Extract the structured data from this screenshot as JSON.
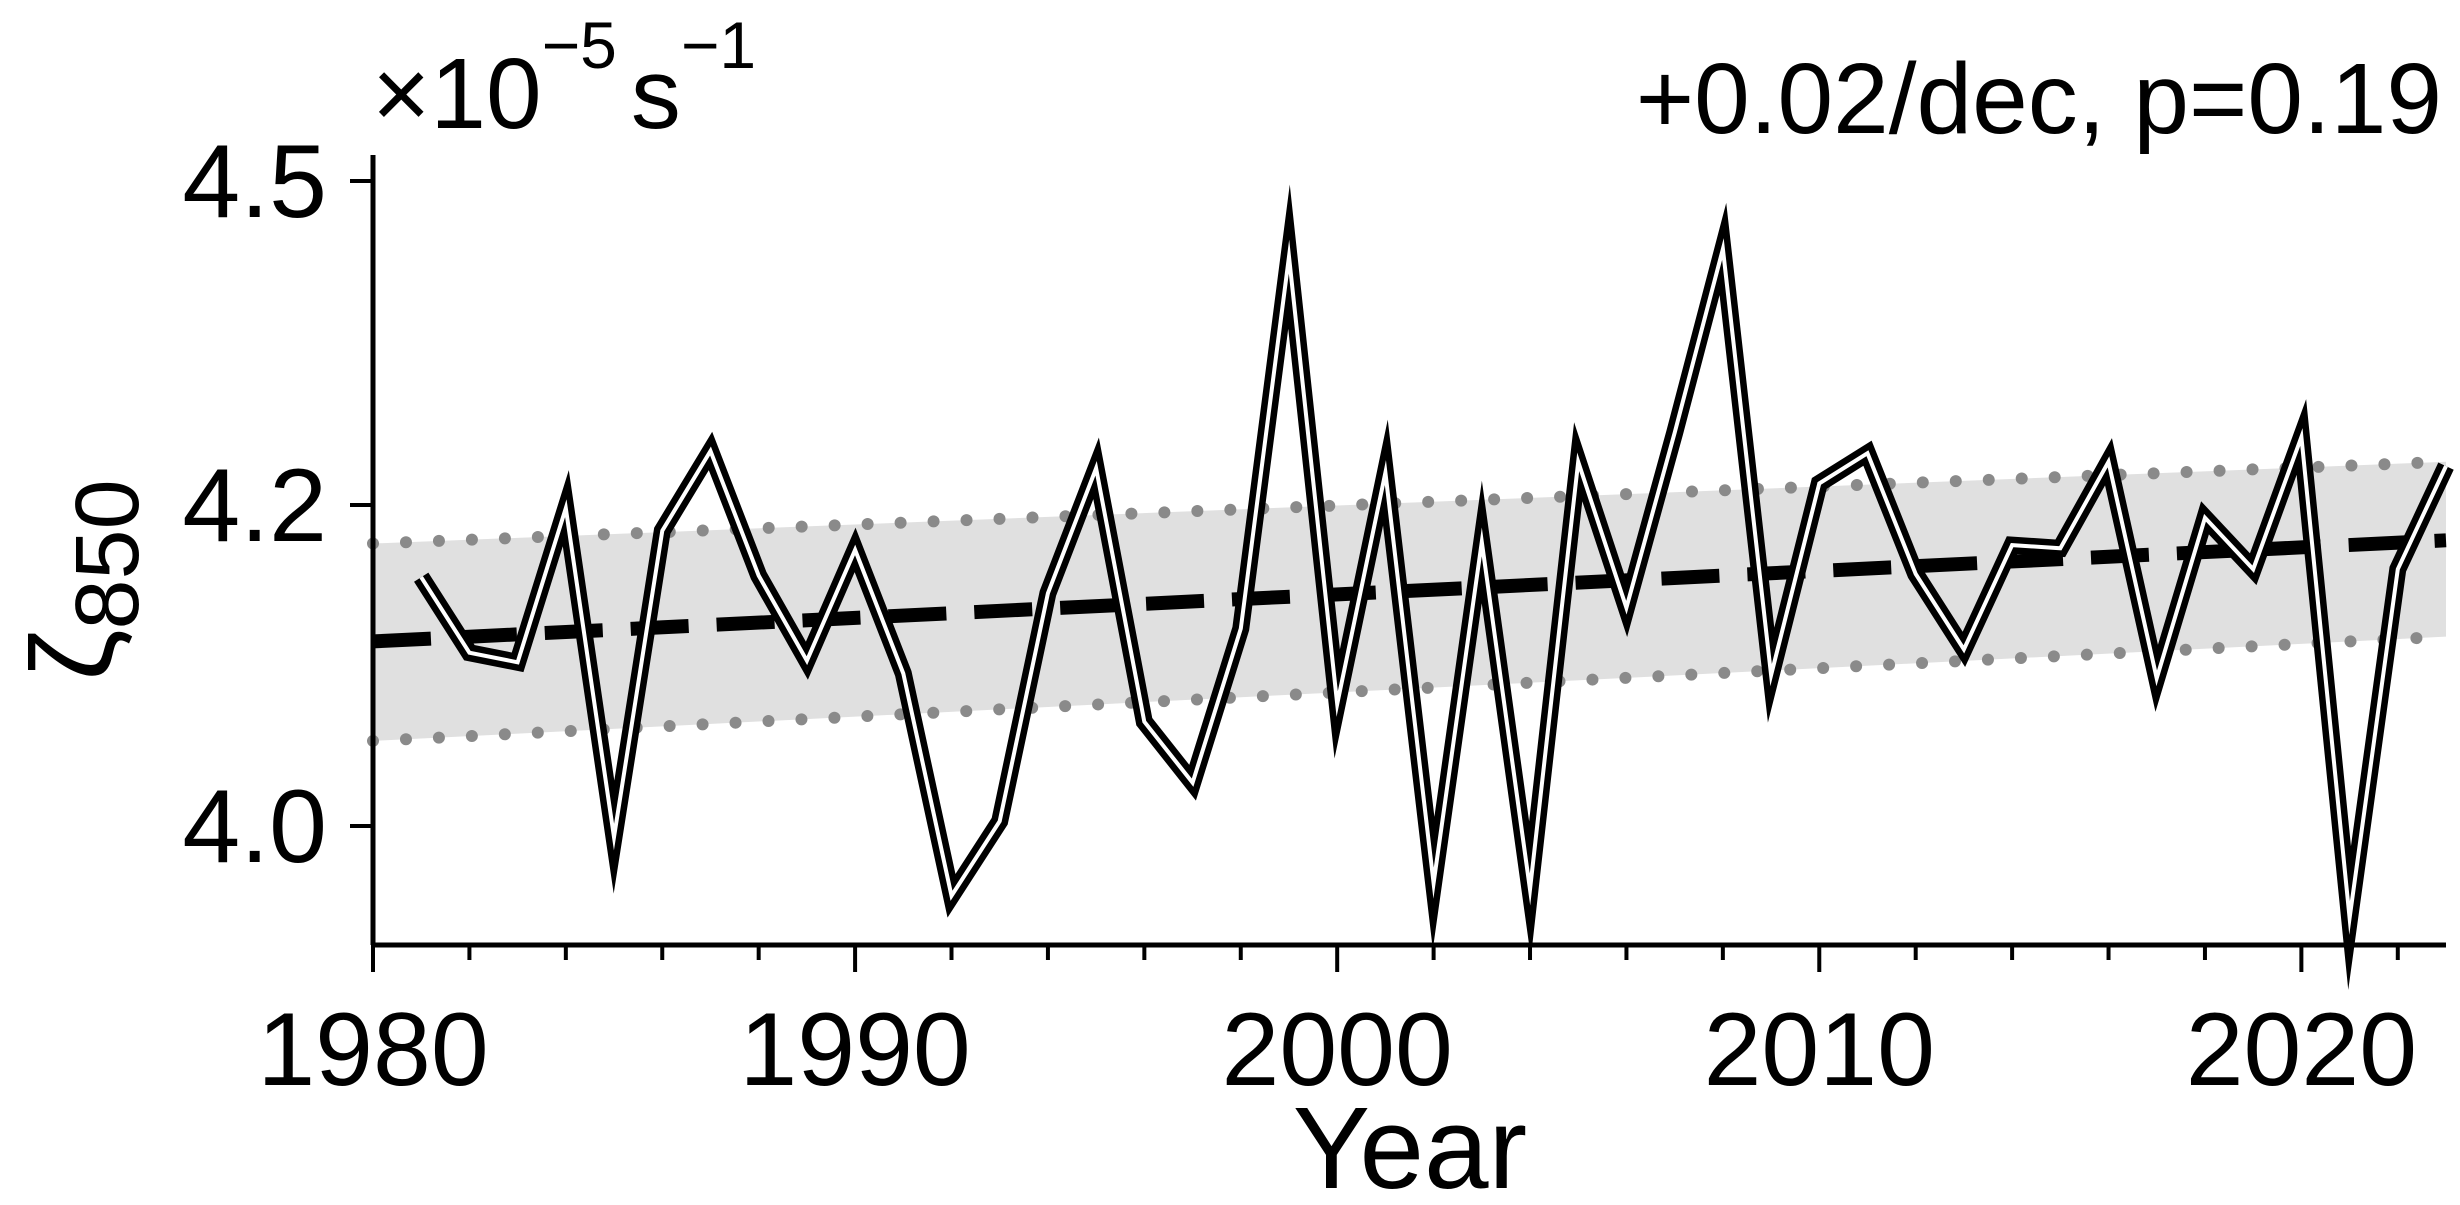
{
  "chart_data": {
    "type": "line",
    "xlabel": "Year",
    "ylabel_symbol": "ζ",
    "ylabel_subscript": "850",
    "units": {
      "prefix": "×10",
      "exponent": "−5",
      "unit": "s",
      "unit_exponent": "−1"
    },
    "annotation": "+0.02/dec, p=0.19",
    "xlim": [
      1980,
      2023
    ],
    "ylim": [
      3.925,
      4.52
    ],
    "y_scale_note": "nonlinear axis mapping as drawn (4.0, 4.2, 4.5 ticks)",
    "x_ticks": [
      {
        "value": 1980,
        "label": "1980"
      },
      {
        "value": 1990,
        "label": "1990"
      },
      {
        "value": 2000,
        "label": "2000"
      },
      {
        "value": 2010,
        "label": "2010"
      },
      {
        "value": 2020,
        "label": "2020"
      }
    ],
    "y_ticks": [
      {
        "value": 4.0,
        "label": "4.0"
      },
      {
        "value": 4.2,
        "label": "4.2"
      },
      {
        "value": 4.5,
        "label": "4.5"
      }
    ],
    "grid": false,
    "series": [
      {
        "style": "solid-outlined",
        "x": [
          1981,
          1982,
          1983,
          1984,
          1985,
          1986,
          1987,
          1988,
          1989,
          1990,
          1991,
          1992,
          1993,
          1994,
          1995,
          1996,
          1997,
          1998,
          1999,
          2000,
          2001,
          2002,
          2003,
          2004,
          2005,
          2006,
          2007,
          2008,
          2009,
          2010,
          2011,
          2012,
          2013,
          2014,
          2015,
          2016,
          2017,
          2018,
          2019,
          2020,
          2021,
          2022,
          2023
        ],
        "y": [
          4.155,
          4.108,
          4.102,
          4.198,
          3.993,
          4.184,
          4.25,
          4.156,
          4.103,
          4.172,
          4.095,
          3.956,
          4.003,
          4.145,
          4.234,
          4.065,
          4.027,
          4.123,
          4.43,
          4.076,
          4.23,
          3.964,
          4.177,
          3.96,
          4.24,
          4.136,
          4.267,
          4.437,
          4.094,
          4.22,
          4.248,
          4.157,
          4.11,
          4.175,
          4.173,
          4.24,
          4.092,
          4.192,
          4.16,
          4.263,
          3.942,
          4.16,
          4.236
        ]
      },
      {
        "style": "dashed-trend",
        "x": [
          1980,
          2023
        ],
        "y": [
          4.115,
          4.178
        ]
      }
    ],
    "confidence_band": {
      "x": [
        1980,
        2023
      ],
      "lower": [
        4.053,
        4.118
      ],
      "upper": [
        4.176,
        4.24
      ]
    }
  }
}
